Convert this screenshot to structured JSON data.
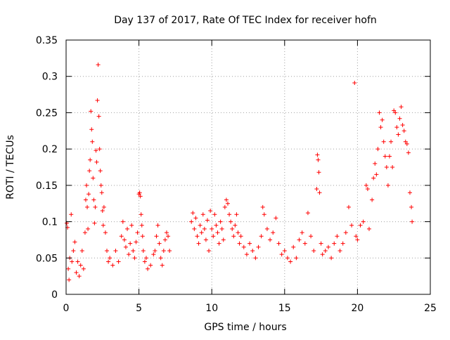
{
  "chart_data": {
    "type": "scatter",
    "title": "Day 137 of 2017, Rate Of TEC Index for receiver hofn",
    "xlabel": "GPS time / hours",
    "ylabel": "ROTI / TECUs",
    "xlim": [
      0,
      25
    ],
    "ylim": [
      0,
      0.35
    ],
    "x_ticks": [
      0,
      5,
      10,
      15,
      20,
      25
    ],
    "y_ticks": [
      0,
      0.05,
      0.1,
      0.15,
      0.2,
      0.25,
      0.3,
      0.35
    ],
    "x_tick_labels": [
      "0",
      "5",
      "10",
      "15",
      "20",
      "25"
    ],
    "y_tick_labels": [
      "0",
      "0.05",
      "0.1",
      "0.15",
      "0.2",
      "0.25",
      "0.3",
      "0.35"
    ],
    "grid": true,
    "legend": "none",
    "marker": "+",
    "color": "#ff0000",
    "data_gap_hours": [
      7.2,
      8.5
    ],
    "series": [
      {
        "points": [
          [
            0.05,
            0.098
          ],
          [
            0.1,
            0.092
          ],
          [
            0.15,
            0.035
          ],
          [
            0.2,
            0.02
          ],
          [
            0.25,
            0.05
          ],
          [
            0.35,
            0.11
          ],
          [
            0.4,
            0.045
          ],
          [
            0.5,
            0.06
          ],
          [
            0.6,
            0.072
          ],
          [
            0.7,
            0.03
          ],
          [
            0.8,
            0.045
          ],
          [
            0.9,
            0.025
          ],
          [
            1.0,
            0.04
          ],
          [
            1.1,
            0.06
          ],
          [
            1.2,
            0.035
          ],
          [
            1.3,
            0.085
          ],
          [
            1.35,
            0.13
          ],
          [
            1.4,
            0.15
          ],
          [
            1.45,
            0.12
          ],
          [
            1.5,
            0.09
          ],
          [
            1.55,
            0.138
          ],
          [
            1.6,
            0.17
          ],
          [
            1.65,
            0.185
          ],
          [
            1.7,
            0.252
          ],
          [
            1.75,
            0.227
          ],
          [
            1.8,
            0.21
          ],
          [
            1.85,
            0.16
          ],
          [
            1.9,
            0.13
          ],
          [
            1.95,
            0.098
          ],
          [
            2.0,
            0.12
          ],
          [
            2.05,
            0.198
          ],
          [
            2.1,
            0.182
          ],
          [
            2.15,
            0.267
          ],
          [
            2.2,
            0.316
          ],
          [
            2.25,
            0.245
          ],
          [
            2.3,
            0.2
          ],
          [
            2.35,
            0.17
          ],
          [
            2.4,
            0.15
          ],
          [
            2.45,
            0.14
          ],
          [
            2.5,
            0.115
          ],
          [
            2.55,
            0.095
          ],
          [
            2.6,
            0.12
          ],
          [
            2.7,
            0.085
          ],
          [
            2.8,
            0.06
          ],
          [
            2.9,
            0.045
          ],
          [
            3.0,
            0.05
          ],
          [
            3.2,
            0.04
          ],
          [
            3.4,
            0.06
          ],
          [
            3.6,
            0.045
          ],
          [
            3.8,
            0.08
          ],
          [
            3.9,
            0.1
          ],
          [
            4.0,
            0.075
          ],
          [
            4.1,
            0.065
          ],
          [
            4.2,
            0.09
          ],
          [
            4.3,
            0.055
          ],
          [
            4.4,
            0.07
          ],
          [
            4.5,
            0.095
          ],
          [
            4.6,
            0.06
          ],
          [
            4.7,
            0.05
          ],
          [
            4.8,
            0.072
          ],
          [
            4.9,
            0.085
          ],
          [
            5.0,
            0.138
          ],
          [
            5.05,
            0.14
          ],
          [
            5.1,
            0.135
          ],
          [
            5.15,
            0.11
          ],
          [
            5.2,
            0.095
          ],
          [
            5.25,
            0.08
          ],
          [
            5.3,
            0.06
          ],
          [
            5.4,
            0.045
          ],
          [
            5.5,
            0.05
          ],
          [
            5.6,
            0.035
          ],
          [
            5.8,
            0.04
          ],
          [
            6.0,
            0.055
          ],
          [
            6.1,
            0.06
          ],
          [
            6.2,
            0.08
          ],
          [
            6.3,
            0.095
          ],
          [
            6.4,
            0.07
          ],
          [
            6.5,
            0.05
          ],
          [
            6.6,
            0.04
          ],
          [
            6.7,
            0.06
          ],
          [
            6.8,
            0.075
          ],
          [
            6.9,
            0.085
          ],
          [
            7.0,
            0.08
          ],
          [
            7.1,
            0.06
          ],
          [
            8.6,
            0.1
          ],
          [
            8.7,
            0.112
          ],
          [
            8.8,
            0.09
          ],
          [
            8.9,
            0.105
          ],
          [
            9.0,
            0.08
          ],
          [
            9.1,
            0.07
          ],
          [
            9.2,
            0.095
          ],
          [
            9.3,
            0.085
          ],
          [
            9.4,
            0.11
          ],
          [
            9.5,
            0.09
          ],
          [
            9.6,
            0.075
          ],
          [
            9.7,
            0.102
          ],
          [
            9.8,
            0.06
          ],
          [
            9.9,
            0.115
          ],
          [
            10.0,
            0.09
          ],
          [
            10.1,
            0.08
          ],
          [
            10.2,
            0.11
          ],
          [
            10.3,
            0.095
          ],
          [
            10.4,
            0.085
          ],
          [
            10.5,
            0.07
          ],
          [
            10.6,
            0.1
          ],
          [
            10.7,
            0.09
          ],
          [
            10.8,
            0.075
          ],
          [
            10.9,
            0.12
          ],
          [
            11.0,
            0.13
          ],
          [
            11.1,
            0.125
          ],
          [
            11.2,
            0.11
          ],
          [
            11.3,
            0.1
          ],
          [
            11.4,
            0.09
          ],
          [
            11.5,
            0.08
          ],
          [
            11.6,
            0.095
          ],
          [
            11.7,
            0.11
          ],
          [
            11.8,
            0.085
          ],
          [
            11.9,
            0.07
          ],
          [
            12.0,
            0.08
          ],
          [
            12.2,
            0.065
          ],
          [
            12.4,
            0.055
          ],
          [
            12.6,
            0.07
          ],
          [
            12.8,
            0.06
          ],
          [
            13.0,
            0.05
          ],
          [
            13.2,
            0.065
          ],
          [
            13.4,
            0.08
          ],
          [
            13.5,
            0.12
          ],
          [
            13.6,
            0.11
          ],
          [
            13.8,
            0.09
          ],
          [
            14.0,
            0.075
          ],
          [
            14.2,
            0.085
          ],
          [
            14.4,
            0.105
          ],
          [
            14.6,
            0.07
          ],
          [
            14.8,
            0.055
          ],
          [
            15.0,
            0.06
          ],
          [
            15.2,
            0.05
          ],
          [
            15.4,
            0.045
          ],
          [
            15.6,
            0.065
          ],
          [
            15.8,
            0.05
          ],
          [
            16.0,
            0.075
          ],
          [
            16.2,
            0.085
          ],
          [
            16.4,
            0.07
          ],
          [
            16.6,
            0.112
          ],
          [
            16.8,
            0.08
          ],
          [
            17.0,
            0.06
          ],
          [
            17.2,
            0.145
          ],
          [
            17.25,
            0.192
          ],
          [
            17.3,
            0.185
          ],
          [
            17.35,
            0.168
          ],
          [
            17.4,
            0.14
          ],
          [
            17.5,
            0.07
          ],
          [
            17.6,
            0.055
          ],
          [
            17.8,
            0.06
          ],
          [
            18.0,
            0.065
          ],
          [
            18.2,
            0.05
          ],
          [
            18.4,
            0.07
          ],
          [
            18.6,
            0.08
          ],
          [
            18.8,
            0.06
          ],
          [
            19.0,
            0.07
          ],
          [
            19.2,
            0.085
          ],
          [
            19.4,
            0.12
          ],
          [
            19.6,
            0.095
          ],
          [
            19.8,
            0.291
          ],
          [
            19.9,
            0.08
          ],
          [
            20.0,
            0.075
          ],
          [
            20.2,
            0.095
          ],
          [
            20.4,
            0.1
          ],
          [
            20.6,
            0.15
          ],
          [
            20.7,
            0.145
          ],
          [
            20.8,
            0.09
          ],
          [
            21.0,
            0.13
          ],
          [
            21.1,
            0.16
          ],
          [
            21.2,
            0.18
          ],
          [
            21.3,
            0.165
          ],
          [
            21.4,
            0.2
          ],
          [
            21.5,
            0.25
          ],
          [
            21.6,
            0.23
          ],
          [
            21.7,
            0.24
          ],
          [
            21.8,
            0.21
          ],
          [
            21.9,
            0.19
          ],
          [
            22.0,
            0.175
          ],
          [
            22.1,
            0.15
          ],
          [
            22.2,
            0.19
          ],
          [
            22.3,
            0.21
          ],
          [
            22.4,
            0.175
          ],
          [
            22.5,
            0.253
          ],
          [
            22.6,
            0.25
          ],
          [
            22.7,
            0.23
          ],
          [
            22.8,
            0.22
          ],
          [
            22.9,
            0.242
          ],
          [
            23.0,
            0.258
          ],
          [
            23.1,
            0.233
          ],
          [
            23.2,
            0.225
          ],
          [
            23.3,
            0.21
          ],
          [
            23.4,
            0.207
          ],
          [
            23.5,
            0.195
          ],
          [
            23.6,
            0.14
          ],
          [
            23.7,
            0.12
          ],
          [
            23.75,
            0.1
          ]
        ]
      }
    ]
  }
}
